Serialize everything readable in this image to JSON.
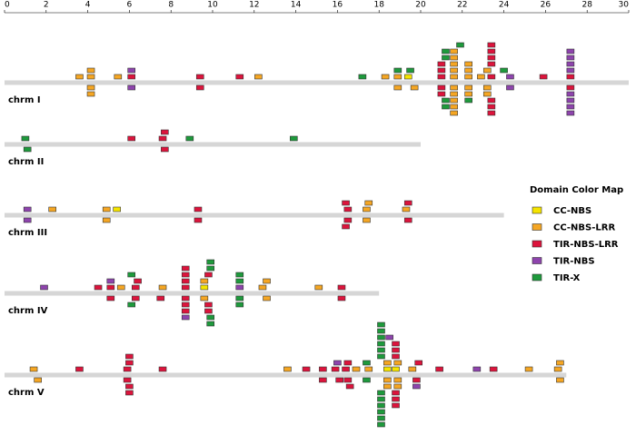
{
  "chart_data": {
    "type": "chromosome-map",
    "xlim": [
      0,
      30
    ],
    "xticks": [
      0,
      2,
      4,
      6,
      8,
      10,
      12,
      14,
      16,
      18,
      20,
      22,
      24,
      26,
      28,
      30
    ],
    "legend_title": "Domain Color Map",
    "series": [
      {
        "name": "CC-NBS",
        "color": "#f5e400"
      },
      {
        "name": "CC-NBS-LRR",
        "color": "#f5a623"
      },
      {
        "name": "TIR-NBS-LRR",
        "color": "#dc143c"
      },
      {
        "name": "TIR-NBS",
        "color": "#8e44ad"
      },
      {
        "name": "TIR-X",
        "color": "#1e9a3c"
      }
    ],
    "chromosomes": [
      {
        "name": "chrm I",
        "length": 30,
        "values": [
          [
            19.4
          ],
          [
            3.6,
            4.15,
            4.15,
            4.15,
            4.15,
            5.45,
            12.2,
            18.3,
            18.9,
            18.9,
            19.7,
            21.6,
            21.6,
            21.6,
            21.6,
            21.6,
            21.6,
            21.6,
            21.6,
            21.6,
            21.6,
            22.3,
            22.3,
            22.3,
            22.3,
            22.3,
            22.9,
            23.2,
            23.2,
            23.2
          ],
          [
            6.1,
            9.4,
            9.4,
            11.3,
            21.0,
            21.0,
            21.0,
            21.0,
            21.0,
            23.4,
            23.4,
            23.4,
            23.4,
            23.4,
            23.4,
            23.4,
            23.4,
            25.9,
            27.2,
            27.2
          ],
          [
            6.1,
            6.1,
            24.3,
            24.3,
            27.2,
            27.2,
            27.2,
            27.2,
            27.2,
            27.2,
            27.2,
            27.2
          ],
          [
            17.2,
            18.9,
            19.5,
            21.2,
            21.2,
            21.2,
            21.2,
            21.9,
            22.3,
            24.0
          ]
        ]
      },
      {
        "name": "chrm II",
        "length": 20,
        "values": [
          [],
          [],
          [
            6.1,
            7.6,
            7.7,
            7.7
          ],
          [],
          [
            1.0,
            1.1,
            8.9,
            13.9
          ]
        ]
      },
      {
        "name": "chrm III",
        "length": 24,
        "values": [
          [
            5.4
          ],
          [
            2.3,
            4.9,
            4.9,
            17.4,
            17.4,
            17.5,
            19.3
          ],
          [
            9.3,
            9.3,
            16.5,
            16.5,
            16.4,
            16.4,
            19.4,
            19.4
          ],
          [
            1.1,
            1.1
          ],
          []
        ]
      },
      {
        "name": "chrm IV",
        "length": 18,
        "values": [
          [
            9.6
          ],
          [
            5.6,
            7.6,
            9.6,
            9.6,
            12.4,
            12.6,
            12.6,
            15.1
          ],
          [
            4.5,
            5.1,
            5.1,
            6.3,
            6.3,
            6.4,
            7.5,
            8.7,
            8.7,
            8.7,
            8.7,
            8.7,
            8.7,
            8.7,
            9.8,
            9.8,
            9.8,
            16.2,
            16.2
          ],
          [
            1.9,
            5.1,
            8.7,
            11.3
          ],
          [
            6.1,
            6.1,
            9.9,
            9.9,
            9.9,
            9.9,
            11.3,
            11.3,
            11.3,
            11.3
          ]
        ]
      },
      {
        "name": "chrm V",
        "length": 27,
        "values": [
          [
            18.4,
            18.8
          ],
          [
            1.4,
            1.6,
            13.6,
            16.9,
            17.5,
            18.4,
            18.4,
            18.4,
            18.9,
            18.9,
            18.9,
            19.6,
            25.2,
            26.6,
            26.7,
            26.7
          ],
          [
            3.6,
            5.9,
            5.9,
            6.0,
            6.0,
            6.0,
            6.0,
            7.6,
            14.5,
            15.3,
            15.3,
            15.9,
            16.1,
            16.4,
            16.5,
            16.5,
            16.6,
            18.8,
            18.8,
            18.8,
            18.8,
            18.8,
            18.8,
            19.8,
            19.9,
            20.9,
            23.5
          ],
          [
            16.0,
            18.5,
            19.8,
            22.7
          ],
          [
            17.4,
            17.4,
            18.1,
            18.1,
            18.1,
            18.1,
            18.1,
            18.1,
            18.1,
            18.1,
            18.1,
            18.1,
            18.1,
            18.1
          ]
        ]
      }
    ]
  }
}
